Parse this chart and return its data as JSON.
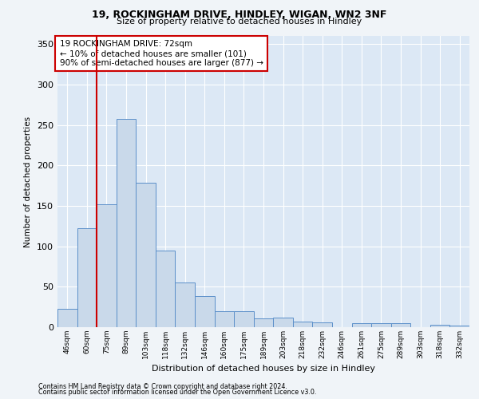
{
  "title1": "19, ROCKINGHAM DRIVE, HINDLEY, WIGAN, WN2 3NF",
  "title2": "Size of property relative to detached houses in Hindley",
  "xlabel": "Distribution of detached houses by size in Hindley",
  "ylabel": "Number of detached properties",
  "categories": [
    "46sqm",
    "60sqm",
    "75sqm",
    "89sqm",
    "103sqm",
    "118sqm",
    "132sqm",
    "146sqm",
    "160sqm",
    "175sqm",
    "189sqm",
    "203sqm",
    "218sqm",
    "232sqm",
    "246sqm",
    "261sqm",
    "275sqm",
    "289sqm",
    "303sqm",
    "318sqm",
    "332sqm"
  ],
  "values": [
    23,
    122,
    152,
    257,
    179,
    95,
    55,
    38,
    20,
    20,
    11,
    12,
    7,
    6,
    0,
    5,
    5,
    5,
    0,
    3,
    2
  ],
  "bar_color": "#c9d9ea",
  "bar_edge_color": "#5b8fc9",
  "vline_x": 1.5,
  "vline_color": "#cc0000",
  "annotation_text": "19 ROCKINGHAM DRIVE: 72sqm\n← 10% of detached houses are smaller (101)\n90% of semi-detached houses are larger (877) →",
  "annotation_box_color": "#ffffff",
  "annotation_box_edge_color": "#cc0000",
  "ylim": [
    0,
    360
  ],
  "yticks": [
    0,
    50,
    100,
    150,
    200,
    250,
    300,
    350
  ],
  "background_color": "#dce8f5",
  "grid_color": "#ffffff",
  "fig_bg_color": "#f0f4f8",
  "footer_line1": "Contains HM Land Registry data © Crown copyright and database right 2024.",
  "footer_line2": "Contains public sector information licensed under the Open Government Licence v3.0."
}
